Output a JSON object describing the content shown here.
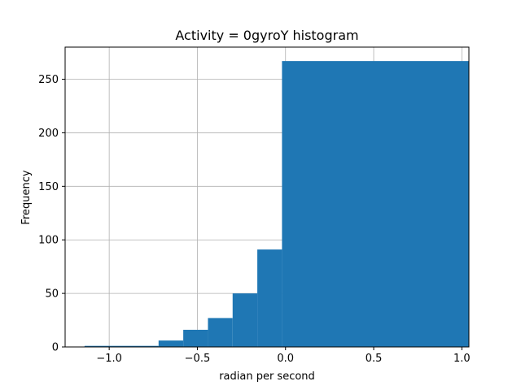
{
  "chart_data": {
    "type": "bar",
    "title": "Activity = 0gyroY histogram",
    "xlabel": "radian per second",
    "ylabel": "Frequency",
    "xlim": [
      -1.25,
      1.04
    ],
    "ylim": [
      0,
      280
    ],
    "grid": true,
    "bar_color": "#1f77b4",
    "x_ticks": [
      {
        "value": -1.0,
        "label": "−1.0"
      },
      {
        "value": -0.5,
        "label": "−0.5"
      },
      {
        "value": 0.0,
        "label": "0.0"
      },
      {
        "value": 0.5,
        "label": "0.5"
      },
      {
        "value": 1.0,
        "label": "1.0"
      }
    ],
    "y_ticks": [
      {
        "value": 0,
        "label": "0"
      },
      {
        "value": 50,
        "label": "50"
      },
      {
        "value": 100,
        "label": "100"
      },
      {
        "value": 150,
        "label": "150"
      },
      {
        "value": 200,
        "label": "200"
      },
      {
        "value": 250,
        "label": "250"
      }
    ],
    "bins": [
      {
        "x0": -1.14,
        "x1": -0.72,
        "value": 1
      },
      {
        "x0": -0.72,
        "x1": -0.58,
        "value": 6
      },
      {
        "x0": -0.58,
        "x1": -0.44,
        "value": 16
      },
      {
        "x0": -0.44,
        "x1": -0.3,
        "value": 27
      },
      {
        "x0": -0.3,
        "x1": -0.16,
        "value": 50
      },
      {
        "x0": -0.16,
        "x1": -0.02,
        "value": 91
      },
      {
        "x0": -0.02,
        "x1": 1.04,
        "value": 267
      }
    ]
  }
}
